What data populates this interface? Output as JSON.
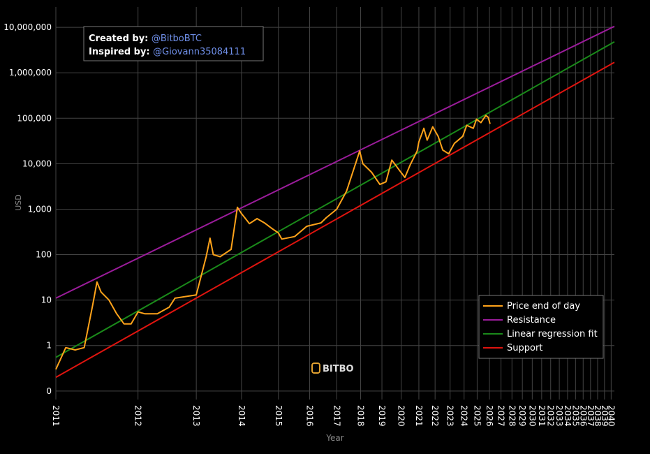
{
  "chart_data": {
    "type": "line",
    "xlabel": "Year",
    "ylabel": "USD",
    "xscale": "log",
    "xlog_origin": 2009,
    "yscale": "log",
    "xlim": [
      2011,
      2040.5
    ],
    "ylim": [
      0.065,
      28000000
    ],
    "xticks": [
      2011,
      2012,
      2013,
      2014,
      2015,
      2016,
      2017,
      2018,
      2019,
      2020,
      2021,
      2022,
      2023,
      2024,
      2025,
      2026,
      2027,
      2028,
      2029,
      2030,
      2031,
      2032,
      2033,
      2034,
      2035,
      2036,
      2037,
      2038,
      2039,
      2040
    ],
    "yticks": [
      {
        "value": 0.1,
        "label": "0"
      },
      1,
      10,
      100,
      {
        "value": 1000,
        "label": "1,000"
      },
      {
        "value": 10000,
        "label": "10,000"
      },
      {
        "value": 100000,
        "label": "100,000"
      },
      {
        "value": 1000000,
        "label": "1,000,000"
      },
      {
        "value": 10000000,
        "label": "10,000,000"
      }
    ],
    "grid": true,
    "legend": "lower right",
    "annotation": {
      "created_label": "Created by:",
      "created_by": "@BitboBTC",
      "inspired_label": "Inspired by:",
      "inspired_by": "@Giovann35084111"
    },
    "watermark": "BITBO",
    "series": [
      {
        "name": "Price end of day",
        "color": "#ffa31a",
        "x": [
          2011.0,
          2011.1,
          2011.2,
          2011.3,
          2011.4,
          2011.45,
          2011.5,
          2011.6,
          2011.7,
          2011.8,
          2011.9,
          2012.0,
          2012.1,
          2012.3,
          2012.5,
          2012.6,
          2012.8,
          2013.0,
          2013.2,
          2013.28,
          2013.35,
          2013.5,
          2013.75,
          2013.9,
          2014.0,
          2014.2,
          2014.4,
          2014.6,
          2014.8,
          2015.0,
          2015.1,
          2015.5,
          2015.9,
          2016.4,
          2016.6,
          2017.0,
          2017.4,
          2017.96,
          2018.1,
          2018.5,
          2018.9,
          2019.2,
          2019.5,
          2019.9,
          2020.2,
          2020.5,
          2020.9,
          2021.0,
          2021.3,
          2021.5,
          2021.85,
          2022.2,
          2022.5,
          2022.9,
          2023.3,
          2023.9,
          2024.2,
          2024.7,
          2024.95,
          2025.3,
          2025.7,
          2025.9,
          2026.05
        ],
        "values": [
          0.3,
          0.9,
          0.8,
          0.9,
          8,
          25,
          15,
          10,
          5,
          3,
          3,
          5.5,
          5,
          5,
          7,
          11,
          12,
          13,
          90,
          230,
          100,
          90,
          130,
          1100,
          800,
          480,
          620,
          500,
          380,
          300,
          220,
          250,
          420,
          500,
          650,
          1000,
          2500,
          19000,
          10000,
          6500,
          3500,
          4000,
          12000,
          7200,
          5000,
          9500,
          19000,
          30000,
          60000,
          33000,
          65000,
          40000,
          20000,
          16500,
          28000,
          40000,
          70000,
          60000,
          95000,
          80000,
          115000,
          105000,
          75000
        ]
      },
      {
        "name": "Resistance",
        "color": "#9b1c9b",
        "x": [
          2011,
          2040.5
        ],
        "values": [
          11,
          10500000
        ]
      },
      {
        "name": "Linear regression fit",
        "color": "#1a8a1a",
        "x": [
          2011,
          2040.5
        ],
        "values": [
          0.55,
          4800000
        ]
      },
      {
        "name": "Support",
        "color": "#e0140f",
        "x": [
          2011,
          2040.5
        ],
        "values": [
          0.2,
          1700000
        ]
      }
    ]
  }
}
